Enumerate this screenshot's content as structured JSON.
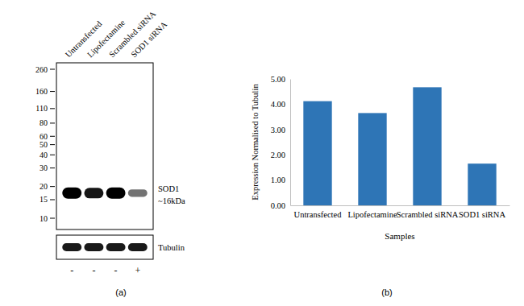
{
  "panel_labels": [
    "(a)",
    "(b)"
  ],
  "blot": {
    "lanes": [
      "Untransfected",
      "Lipofectamine",
      "Scrambled siRNA",
      "SOD1 siRNA"
    ],
    "markers": [
      260,
      160,
      110,
      80,
      60,
      50,
      40,
      30,
      20,
      15,
      10
    ],
    "band_labels": [
      "SOD1",
      "~16kDa"
    ],
    "loading_control": "Tubulin",
    "treatment": [
      "-",
      "-",
      "-",
      "+"
    ]
  },
  "chart_data": {
    "type": "bar",
    "categories": [
      "Untransfected",
      "Lipofectamine",
      "Scrambled siRNA",
      "SOD1 siRNA"
    ],
    "values": [
      4.12,
      3.65,
      4.67,
      1.65
    ],
    "color": "#2e75b6",
    "x_label": "Samples",
    "y_label": "Expression Normalised to Tubulin",
    "ylim": [
      0,
      5
    ],
    "yticks": [
      {
        "value": 0,
        "label": "0.00"
      },
      {
        "value": 1,
        "label": "1.00"
      },
      {
        "value": 2,
        "label": "2.00"
      },
      {
        "value": 3,
        "label": "3.00"
      },
      {
        "value": 4,
        "label": "4.00"
      },
      {
        "value": 5,
        "label": "5.00"
      }
    ],
    "grid": false
  }
}
